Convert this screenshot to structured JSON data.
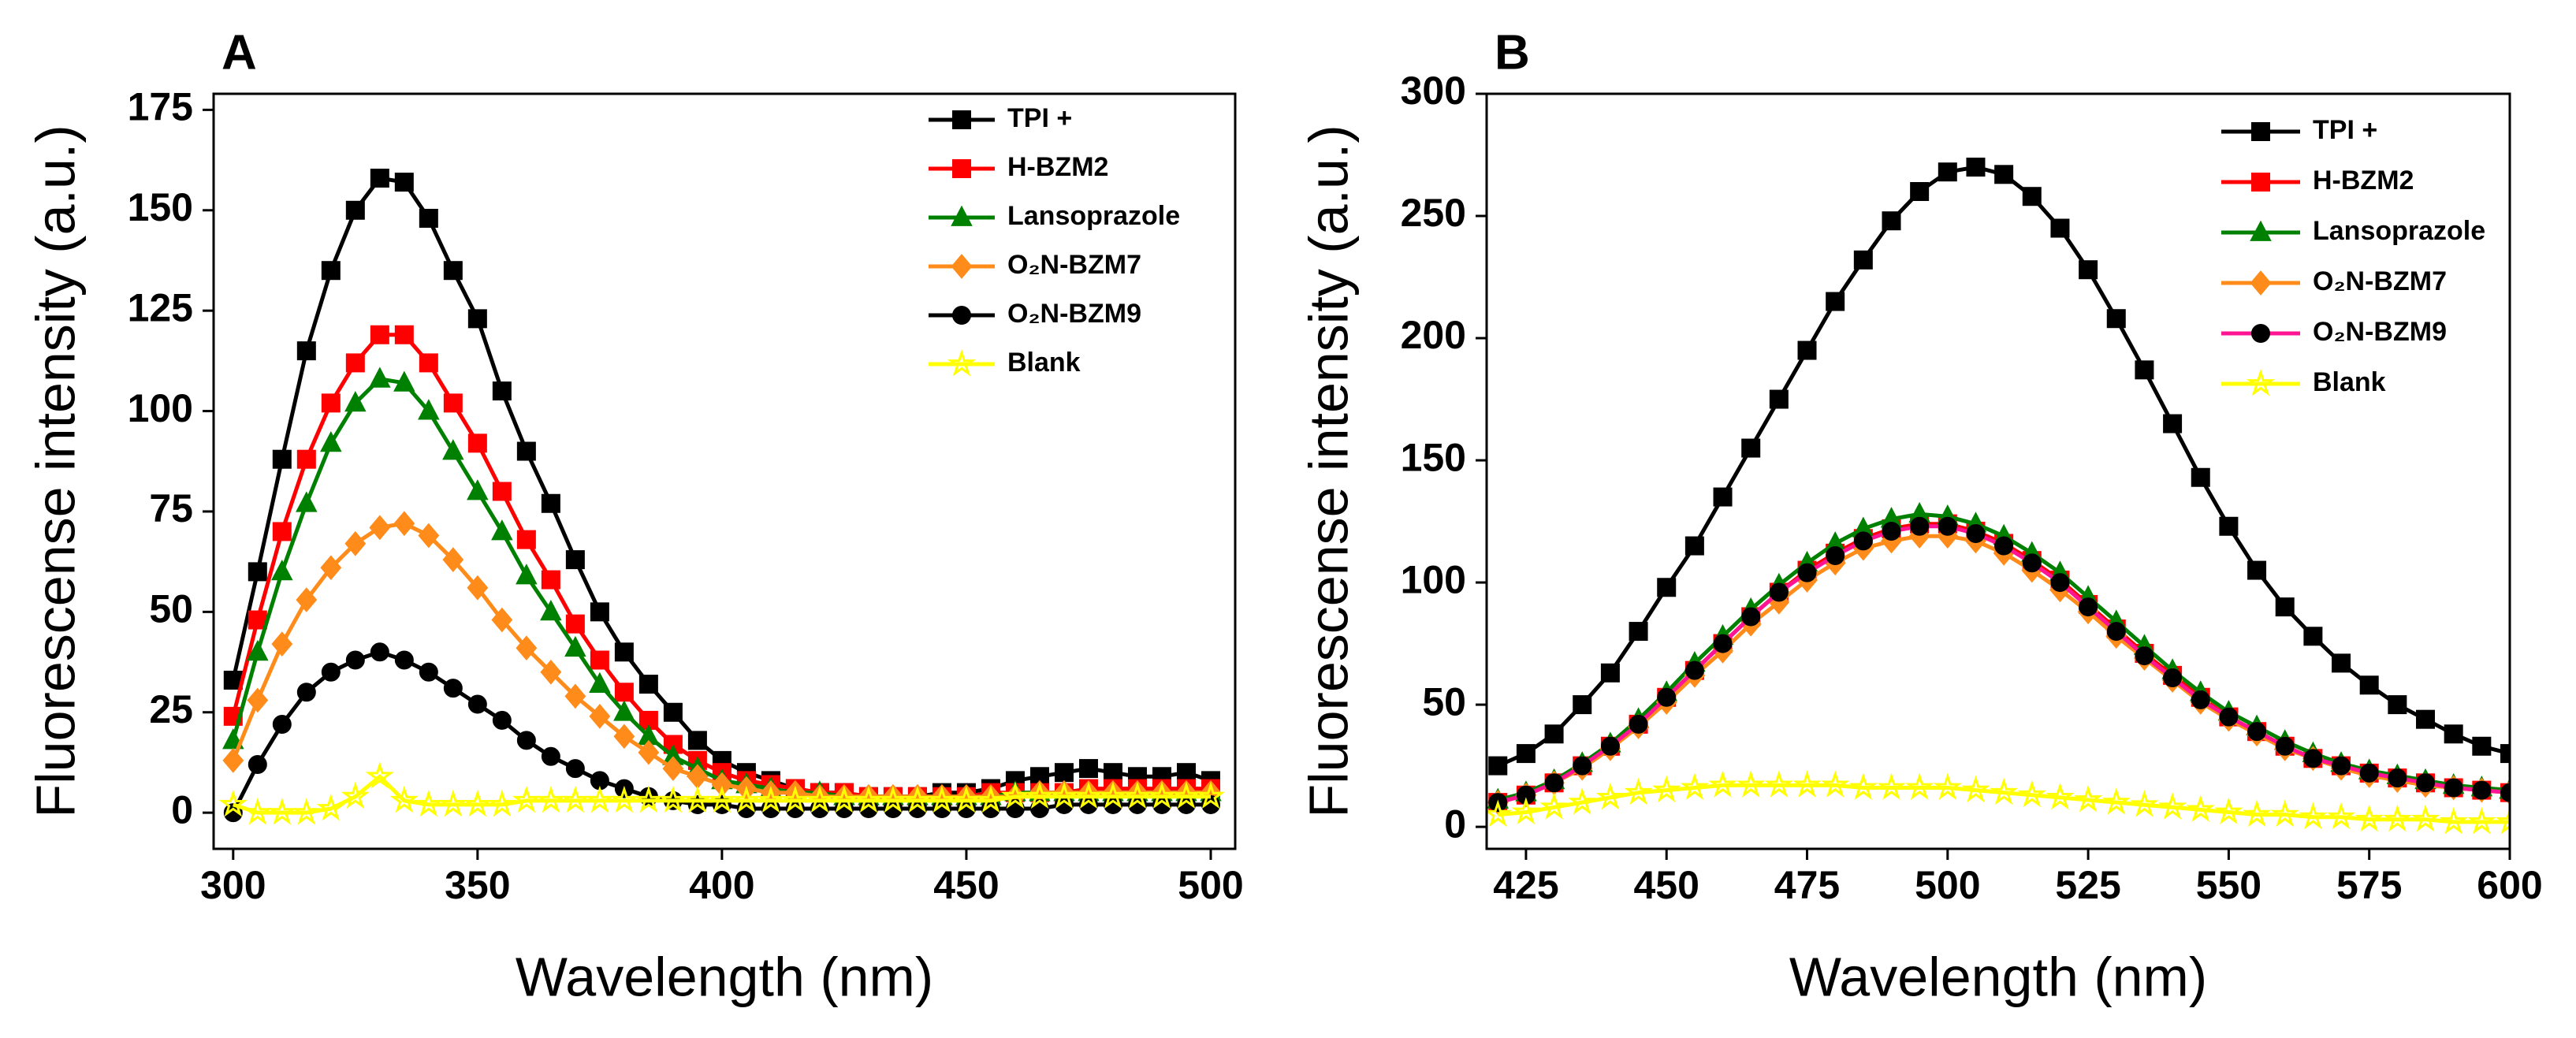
{
  "chart_data": [
    {
      "type": "line",
      "title": "A",
      "x_label": "Wavelength (nm)",
      "y_label": "Fluorescense intensity (a.u.)",
      "x": [
        300,
        305,
        310,
        315,
        320,
        325,
        330,
        335,
        340,
        345,
        350,
        355,
        360,
        365,
        370,
        375,
        380,
        385,
        390,
        395,
        400,
        405,
        410,
        415,
        420,
        425,
        430,
        435,
        440,
        445,
        450,
        455,
        460,
        465,
        470,
        475,
        480,
        485,
        490,
        495,
        500
      ],
      "xlim": [
        296,
        505
      ],
      "xticks": [
        300,
        350,
        400,
        450,
        500
      ],
      "ylim": [
        -9,
        179
      ],
      "yticks": [
        0,
        25,
        50,
        75,
        100,
        125,
        150,
        175
      ],
      "series": [
        {
          "name": "TPI +",
          "color": "#000000",
          "marker": "square",
          "values": [
            33,
            60,
            88,
            115,
            135,
            150,
            158,
            157,
            148,
            135,
            123,
            105,
            90,
            77,
            63,
            50,
            40,
            32,
            25,
            18,
            13,
            10,
            8,
            6,
            5,
            5,
            4,
            4,
            4,
            5,
            5,
            6,
            8,
            9,
            10,
            11,
            10,
            9,
            9,
            10,
            8
          ]
        },
        {
          "name": "H-BZM2",
          "color": "#ff0000",
          "marker": "square",
          "values": [
            24,
            48,
            70,
            88,
            102,
            112,
            119,
            119,
            112,
            102,
            92,
            80,
            68,
            58,
            47,
            38,
            30,
            23,
            17,
            13,
            10,
            8,
            7,
            6,
            5,
            5,
            4,
            4,
            4,
            4,
            4,
            5,
            5,
            5,
            5,
            6,
            6,
            6,
            6,
            6,
            6
          ]
        },
        {
          "name": "Lansoprazole",
          "color": "#008000",
          "marker": "triangle",
          "values": [
            18,
            40,
            60,
            77,
            92,
            102,
            108,
            107,
            100,
            90,
            80,
            70,
            59,
            50,
            41,
            32,
            25,
            19,
            14,
            11,
            8,
            7,
            6,
            5,
            5,
            4,
            4,
            4,
            4,
            4,
            4,
            4,
            5,
            5,
            5,
            5,
            5,
            5,
            5,
            5,
            5
          ]
        },
        {
          "name": "O₂N-BZM7",
          "color": "#ff8c1a",
          "marker": "diamond",
          "values": [
            13,
            28,
            42,
            53,
            61,
            67,
            71,
            72,
            69,
            63,
            56,
            48,
            41,
            35,
            29,
            24,
            19,
            15,
            11,
            9,
            7,
            6,
            5,
            5,
            4,
            4,
            4,
            4,
            4,
            4,
            4,
            4,
            4,
            5,
            5,
            5,
            5,
            5,
            5,
            5,
            5
          ]
        },
        {
          "name": "O₂N-BZM9",
          "color": "#000000",
          "marker": "circle",
          "values": [
            0,
            12,
            22,
            30,
            35,
            38,
            40,
            38,
            35,
            31,
            27,
            23,
            18,
            14,
            11,
            8,
            6,
            4,
            3,
            2,
            2,
            1,
            1,
            1,
            1,
            1,
            1,
            1,
            1,
            1,
            1,
            1,
            1,
            1,
            2,
            2,
            2,
            2,
            2,
            2,
            2
          ]
        },
        {
          "name": "Blank",
          "color": "#ffff00",
          "marker": "star",
          "values": [
            2,
            0,
            0,
            0,
            1,
            4,
            9,
            3,
            2,
            2,
            2,
            2,
            3,
            3,
            3,
            3,
            3,
            3,
            3,
            3,
            3,
            3,
            3,
            3,
            3,
            3,
            3,
            3,
            3,
            3,
            3,
            3,
            4,
            4,
            4,
            4,
            4,
            4,
            4,
            4,
            4
          ]
        }
      ]
    },
    {
      "type": "line",
      "title": "B",
      "x_label": "Wavelength (nm)",
      "y_label": "Fluorescense intensity (a.u.)",
      "x": [
        420,
        425,
        430,
        435,
        440,
        445,
        450,
        455,
        460,
        465,
        470,
        475,
        480,
        485,
        490,
        495,
        500,
        505,
        510,
        515,
        520,
        525,
        530,
        535,
        540,
        545,
        550,
        555,
        560,
        565,
        570,
        575,
        580,
        585,
        590,
        595,
        600
      ],
      "xlim": [
        418,
        600
      ],
      "xticks": [
        425,
        450,
        475,
        500,
        525,
        550,
        575,
        600
      ],
      "ylim": [
        -9,
        300
      ],
      "yticks": [
        0,
        50,
        100,
        150,
        200,
        250,
        300
      ],
      "series": [
        {
          "name": "TPI +",
          "color": "#000000",
          "marker": "square",
          "values": [
            25,
            30,
            38,
            50,
            63,
            80,
            98,
            115,
            135,
            155,
            175,
            195,
            215,
            232,
            248,
            260,
            268,
            270,
            267,
            258,
            245,
            228,
            208,
            187,
            165,
            143,
            123,
            105,
            90,
            78,
            67,
            58,
            50,
            44,
            38,
            33,
            30
          ]
        },
        {
          "name": "H-BZM2",
          "color": "#ff0000",
          "marker": "square",
          "values": [
            10,
            13,
            18,
            25,
            33,
            42,
            53,
            64,
            75,
            86,
            96,
            105,
            112,
            118,
            122,
            124,
            124,
            121,
            116,
            109,
            101,
            91,
            81,
            71,
            62,
            53,
            45,
            39,
            33,
            28,
            25,
            22,
            20,
            18,
            16,
            15,
            14
          ]
        },
        {
          "name": "Lansoprazole",
          "color": "#008000",
          "marker": "triangle",
          "values": [
            11,
            14,
            19,
            26,
            34,
            44,
            55,
            67,
            78,
            89,
            99,
            108,
            116,
            122,
            126,
            128,
            127,
            124,
            119,
            112,
            104,
            94,
            84,
            74,
            64,
            55,
            47,
            41,
            35,
            30,
            26,
            23,
            21,
            19,
            17,
            16,
            15
          ]
        },
        {
          "name": "O₂N-BZM7",
          "color": "#ff8c1a",
          "marker": "diamond",
          "values": [
            10,
            13,
            18,
            24,
            32,
            41,
            51,
            62,
            72,
            83,
            92,
            101,
            108,
            114,
            117,
            119,
            119,
            117,
            112,
            105,
            97,
            88,
            78,
            69,
            60,
            51,
            44,
            38,
            32,
            28,
            24,
            21,
            19,
            17,
            16,
            15,
            14
          ]
        },
        {
          "name": "O₂N-BZM9",
          "color": "#ff1493",
          "marker_color": "#000000",
          "marker": "circle",
          "values": [
            10,
            13,
            18,
            25,
            33,
            42,
            53,
            64,
            75,
            86,
            96,
            104,
            111,
            117,
            121,
            123,
            123,
            120,
            115,
            108,
            100,
            90,
            80,
            70,
            61,
            52,
            45,
            39,
            33,
            28,
            25,
            22,
            20,
            18,
            16,
            15,
            14
          ]
        },
        {
          "name": "Blank",
          "color": "#ffff00",
          "marker": "star",
          "values": [
            5,
            6,
            8,
            10,
            12,
            14,
            15,
            16,
            17,
            17,
            17,
            17,
            17,
            16,
            16,
            16,
            16,
            15,
            14,
            13,
            12,
            11,
            10,
            9,
            8,
            7,
            6,
            5,
            5,
            4,
            4,
            3,
            3,
            3,
            2,
            2,
            2
          ]
        }
      ]
    }
  ]
}
